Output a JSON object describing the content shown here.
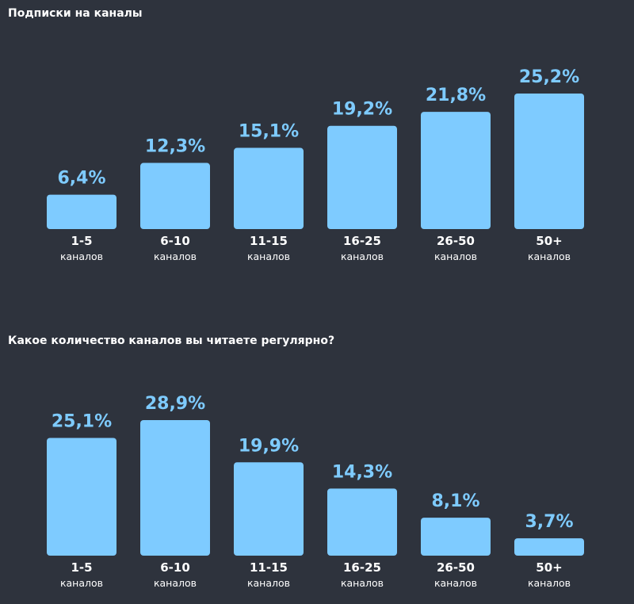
{
  "colors": {
    "background": "#2e333d",
    "bar": "#7ecbff",
    "value_text": "#7ecbff",
    "label_text": "#ffffff"
  },
  "chart_data": [
    {
      "type": "bar",
      "title": "Подписки на каналы",
      "categories": [
        "1-5",
        "6-10",
        "11-15",
        "16-25",
        "26-50",
        "50+"
      ],
      "unit_label": "каналов",
      "values": [
        6.4,
        12.3,
        15.1,
        19.2,
        21.8,
        25.2
      ],
      "value_labels": [
        "6,4%",
        "12,3%",
        "15,1%",
        "19,2%",
        "21,8%",
        "25,2%"
      ],
      "xlabel": "",
      "ylabel": "",
      "ylim": [
        0,
        25.2
      ],
      "grid": false,
      "legend": "none"
    },
    {
      "type": "bar",
      "title": "Какое количество каналов вы читаете регулярно?",
      "categories": [
        "1-5",
        "6-10",
        "11-15",
        "16-25",
        "26-50",
        "50+"
      ],
      "unit_label": "каналов",
      "values": [
        25.1,
        28.9,
        19.9,
        14.3,
        8.1,
        3.7
      ],
      "value_labels": [
        "25,1%",
        "28,9%",
        "19,9%",
        "14,3%",
        "8,1%",
        "3,7%"
      ],
      "xlabel": "",
      "ylabel": "",
      "ylim": [
        0,
        28.9
      ],
      "grid": false,
      "legend": "none"
    }
  ]
}
